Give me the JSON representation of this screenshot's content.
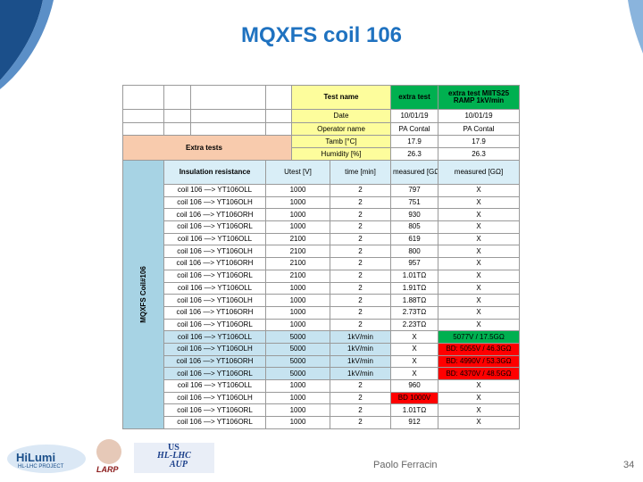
{
  "header": {
    "title": "MQXFS coil 106"
  },
  "table": {
    "header_rows": [
      [
        "Test name",
        "extra test",
        "extra test MIITS25 RAMP 1kV/min"
      ],
      [
        "Date",
        "10/01/19",
        "10/01/19"
      ],
      [
        "Operator name",
        "PA Contal",
        "PA Contal"
      ]
    ],
    "group_label": "Extra tests",
    "env_rows": [
      [
        "Tamb [°C]",
        "17.9",
        "17.9"
      ],
      [
        "Humidity [%]",
        "26.3",
        "26.3"
      ]
    ],
    "side_label": "MQXFS Coil#106",
    "columns": [
      "Insulation resistance",
      "Utest [V]",
      "time [min]",
      "measured [GΩ]",
      "measured [GΩ]"
    ],
    "rows": [
      [
        "coil 106 —> YT106OLL",
        "1000",
        "2",
        "797",
        "X"
      ],
      [
        "coil 106 —> YT106OLH",
        "1000",
        "2",
        "751",
        "X"
      ],
      [
        "coil 106 —> YT106ORH",
        "1000",
        "2",
        "930",
        "X"
      ],
      [
        "coil 106 —> YT106ORL",
        "1000",
        "2",
        "805",
        "X"
      ],
      [
        "coil 106 —> YT106OLL",
        "2100",
        "2",
        "619",
        "X"
      ],
      [
        "coil 106 —> YT106OLH",
        "2100",
        "2",
        "800",
        "X"
      ],
      [
        "coil 106 —> YT106ORH",
        "2100",
        "2",
        "957",
        "X"
      ],
      [
        "coil 106 —> YT106ORL",
        "2100",
        "2",
        "1.01TΩ",
        "X"
      ],
      [
        "coil 106 —> YT106OLL",
        "1000",
        "2",
        "1.91TΩ",
        "X"
      ],
      [
        "coil 106 —> YT106OLH",
        "1000",
        "2",
        "1.88TΩ",
        "X"
      ],
      [
        "coil 106 —> YT106ORH",
        "1000",
        "2",
        "2.73TΩ",
        "X"
      ],
      [
        "coil 106 —> YT106ORL",
        "1000",
        "2",
        "2.23TΩ",
        "X"
      ],
      [
        "coil 106 —> YT106OLL",
        "5000",
        "1kV/min",
        "X",
        "5077V / 17.5GΩ"
      ],
      [
        "coil 106 —> YT106OLH",
        "5000",
        "1kV/min",
        "X",
        "BD: 5055V / 46.3GΩ"
      ],
      [
        "coil 106 —> YT106ORH",
        "5000",
        "1kV/min",
        "X",
        "BD: 4990V / 53.3GΩ"
      ],
      [
        "coil 106 —> YT106ORL",
        "5000",
        "1kV/min",
        "X",
        "BD: 4370V / 48.5GΩ"
      ],
      [
        "coil 106 —> YT106OLL",
        "1000",
        "2",
        "960",
        "X"
      ],
      [
        "coil 106 —> YT106OLH",
        "1000",
        "2",
        "BD 1000V",
        "X"
      ],
      [
        "coil 106 —> YT106ORL",
        "1000",
        "2",
        "1.01TΩ",
        "X"
      ],
      [
        "coil 106 —> YT106ORL",
        "1000",
        "2",
        "912",
        "X"
      ]
    ]
  },
  "footer": {
    "logos": [
      "HiLumi",
      "HL-LHC PROJECT",
      "LARP",
      "US",
      "HL-LHC",
      "AUP"
    ],
    "presenter": "Paolo Ferracin",
    "page": "34"
  }
}
